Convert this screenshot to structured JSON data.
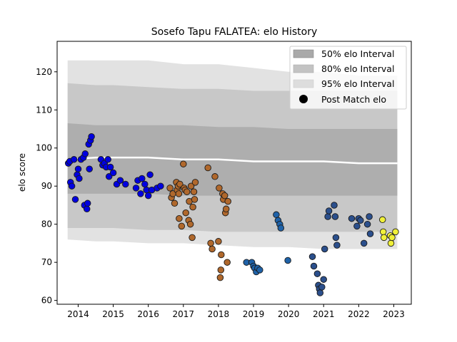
{
  "chart_data": {
    "type": "scatter",
    "title": "Sosefo Tapu FALATEA: elo History",
    "xlabel": "",
    "ylabel": "elo score",
    "xlim": [
      2013.4,
      2023.5
    ],
    "ylim": [
      59,
      128
    ],
    "x_ticks": [
      2014,
      2015,
      2016,
      2017,
      2018,
      2019,
      2020,
      2021,
      2022,
      2023
    ],
    "y_ticks": [
      60,
      70,
      80,
      90,
      100,
      110,
      120
    ],
    "grid": false,
    "legend_position": "top-right",
    "legend": [
      {
        "label": "50% elo Interval",
        "color": "#a9a9a9"
      },
      {
        "label": "80% elo Interval",
        "color": "#c3c3c3"
      },
      {
        "label": "95% elo Interval",
        "color": "#dddddd"
      },
      {
        "label": "Post Match elo",
        "color": "#000000"
      }
    ],
    "bands": {
      "x": [
        2013.7,
        2014.5,
        2015.0,
        2016.0,
        2017.0,
        2018.0,
        2019.0,
        2020.0,
        2021.0,
        2022.0,
        2023.1
      ],
      "band95": {
        "upper": [
          123,
          123,
          123,
          123,
          122,
          122,
          121,
          120,
          120,
          119,
          119
        ],
        "lower": [
          76,
          75.5,
          75.5,
          75,
          75,
          74.5,
          74,
          74,
          73.5,
          73.5,
          73.5
        ]
      },
      "band80": {
        "upper": [
          117,
          116.5,
          116.5,
          116,
          115.5,
          115.5,
          115,
          115,
          115,
          115,
          115
        ],
        "lower": [
          79,
          79,
          79,
          78.5,
          78.5,
          78,
          78,
          78,
          78,
          78,
          78
        ]
      },
      "band50": {
        "upper": [
          106.5,
          106,
          106,
          106,
          106,
          105.5,
          105.5,
          105,
          105,
          105,
          105
        ],
        "lower": [
          88,
          88,
          88,
          88,
          87.5,
          87.5,
          87.5,
          87.5,
          87.5,
          87.5,
          87.5
        ]
      },
      "median": [
        97,
        97.5,
        97.5,
        97.5,
        97,
        97,
        96.5,
        96.5,
        96.5,
        96,
        96
      ]
    },
    "series": [
      {
        "color": "#0000e0",
        "points": [
          [
            2013.72,
            96
          ],
          [
            2013.76,
            96.5
          ],
          [
            2013.78,
            91
          ],
          [
            2013.82,
            90
          ],
          [
            2013.88,
            97
          ],
          [
            2013.92,
            86.5
          ],
          [
            2013.97,
            93
          ],
          [
            2014.0,
            94.5
          ],
          [
            2014.03,
            92
          ],
          [
            2014.08,
            97
          ],
          [
            2014.15,
            97.5
          ],
          [
            2014.18,
            85
          ],
          [
            2014.2,
            98.5
          ],
          [
            2014.25,
            84
          ],
          [
            2014.27,
            85.5
          ],
          [
            2014.3,
            101
          ],
          [
            2014.32,
            94.5
          ],
          [
            2014.35,
            102
          ],
          [
            2014.38,
            103
          ],
          [
            2014.65,
            97
          ],
          [
            2014.7,
            95.5
          ],
          [
            2014.75,
            96
          ],
          [
            2014.8,
            95
          ],
          [
            2014.85,
            97
          ],
          [
            2014.88,
            92.5
          ],
          [
            2014.92,
            95
          ],
          [
            2015.0,
            93.5
          ],
          [
            2015.1,
            90.5
          ],
          [
            2015.2,
            91.5
          ],
          [
            2015.35,
            90.5
          ],
          [
            2015.65,
            89.5
          ],
          [
            2015.7,
            91.5
          ],
          [
            2015.78,
            88
          ],
          [
            2015.82,
            92
          ],
          [
            2015.9,
            90.5
          ],
          [
            2015.95,
            89
          ],
          [
            2016.0,
            87.5
          ],
          [
            2016.05,
            93
          ],
          [
            2016.1,
            89
          ],
          [
            2016.25,
            89.5
          ],
          [
            2016.35,
            90
          ]
        ]
      },
      {
        "color": "#b0682c",
        "points": [
          [
            2016.62,
            89.5
          ],
          [
            2016.66,
            87
          ],
          [
            2016.7,
            88
          ],
          [
            2016.75,
            85.5
          ],
          [
            2016.8,
            91
          ],
          [
            2016.82,
            89
          ],
          [
            2016.85,
            90
          ],
          [
            2016.87,
            88
          ],
          [
            2016.88,
            81.5
          ],
          [
            2016.9,
            90.5
          ],
          [
            2016.95,
            79.5
          ],
          [
            2017.0,
            95.8
          ],
          [
            2017.02,
            89.5
          ],
          [
            2017.05,
            89
          ],
          [
            2017.07,
            83
          ],
          [
            2017.1,
            88.5
          ],
          [
            2017.15,
            81
          ],
          [
            2017.17,
            86
          ],
          [
            2017.2,
            80
          ],
          [
            2017.22,
            90
          ],
          [
            2017.25,
            76.5
          ],
          [
            2017.27,
            84.5
          ],
          [
            2017.3,
            88.5
          ],
          [
            2017.32,
            86.5
          ],
          [
            2017.34,
            91
          ],
          [
            2017.7,
            94.8
          ],
          [
            2017.78,
            75
          ],
          [
            2017.82,
            73.5
          ],
          [
            2017.9,
            92.5
          ],
          [
            2018.0,
            75.5
          ],
          [
            2018.02,
            89.5
          ],
          [
            2018.05,
            66
          ],
          [
            2018.07,
            68
          ],
          [
            2018.08,
            72
          ],
          [
            2018.12,
            88
          ],
          [
            2018.14,
            86.5
          ],
          [
            2018.18,
            87.5
          ],
          [
            2018.2,
            83
          ],
          [
            2018.22,
            84
          ],
          [
            2018.25,
            70
          ],
          [
            2018.27,
            86
          ]
        ]
      },
      {
        "color": "#1f62a8",
        "points": [
          [
            2018.8,
            70
          ],
          [
            2018.95,
            70
          ],
          [
            2019.0,
            69
          ],
          [
            2019.03,
            68.5
          ],
          [
            2019.08,
            67.5
          ],
          [
            2019.12,
            68.5
          ],
          [
            2019.18,
            68
          ],
          [
            2019.65,
            82.5
          ],
          [
            2019.7,
            81
          ],
          [
            2019.75,
            80
          ],
          [
            2019.78,
            79
          ],
          [
            2019.98,
            70.5
          ]
        ]
      },
      {
        "color": "#2b4f8c",
        "points": [
          [
            2020.68,
            71.5
          ],
          [
            2020.72,
            69
          ],
          [
            2020.82,
            67
          ],
          [
            2020.85,
            64
          ],
          [
            2020.88,
            63
          ],
          [
            2020.9,
            62
          ],
          [
            2020.95,
            63.5
          ],
          [
            2021.0,
            65.5
          ],
          [
            2021.03,
            73.5
          ],
          [
            2021.12,
            82
          ],
          [
            2021.15,
            83.5
          ],
          [
            2021.3,
            85
          ],
          [
            2021.33,
            82
          ],
          [
            2021.35,
            76.5
          ],
          [
            2021.38,
            74.5
          ],
          [
            2021.8,
            81.5
          ],
          [
            2021.95,
            79.5
          ],
          [
            2022.0,
            81.5
          ],
          [
            2022.05,
            81
          ],
          [
            2022.15,
            75
          ],
          [
            2022.25,
            80
          ],
          [
            2022.3,
            82
          ],
          [
            2022.33,
            77.5
          ]
        ]
      },
      {
        "color": "#f0f03a",
        "points": [
          [
            2022.68,
            81.2
          ],
          [
            2022.7,
            78
          ],
          [
            2022.72,
            76.5
          ],
          [
            2022.9,
            77
          ],
          [
            2022.92,
            75
          ],
          [
            2022.95,
            76.5
          ],
          [
            2023.05,
            78
          ]
        ]
      }
    ]
  }
}
